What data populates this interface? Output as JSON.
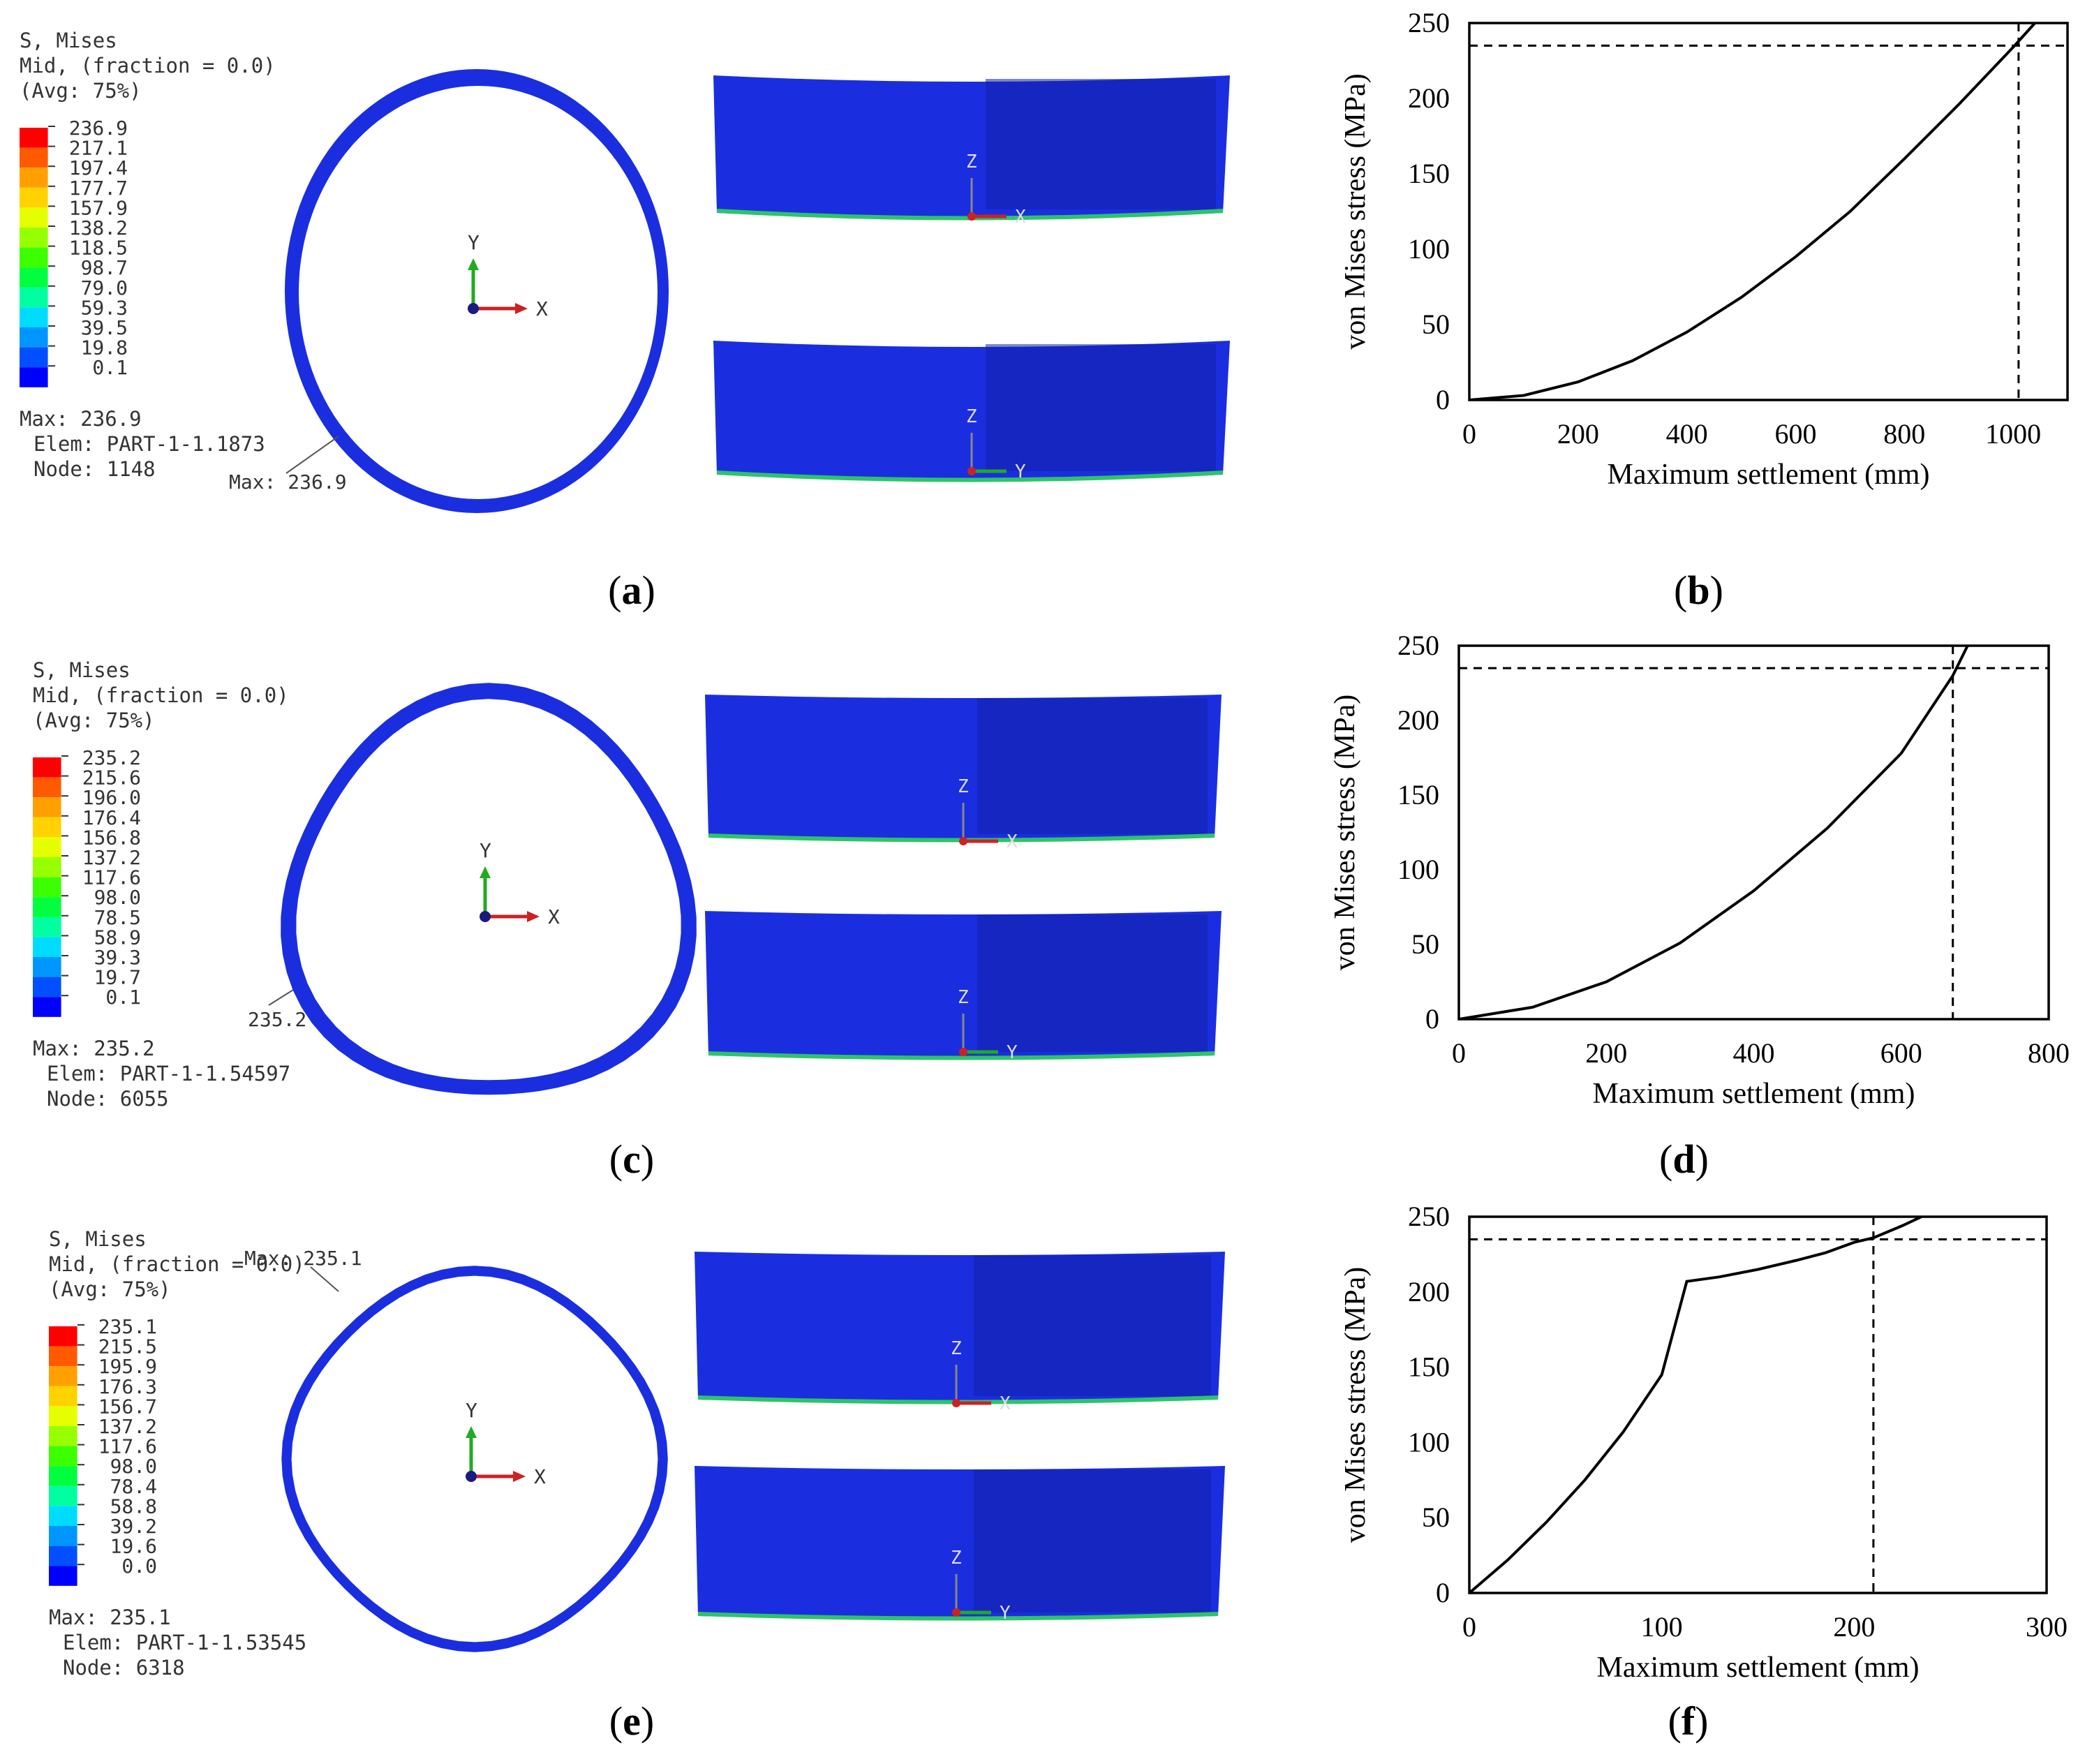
{
  "figure": {
    "panels": [
      {
        "fea": {
          "label": "a",
          "legend_title": [
            "S, Mises",
            "Mid, (fraction = 0.0)",
            "(Avg: 75%)"
          ],
          "legend_values": [
            "236.9",
            "217.1",
            "197.4",
            "177.7",
            "157.9",
            "138.2",
            "118.5",
            "98.7",
            "79.0",
            "59.3",
            "39.5",
            "19.8",
            "0.1"
          ],
          "max_info": [
            "Max: 236.9",
            "Elem: PART-1-1.1873",
            "Node: 1148"
          ],
          "max_callout": "Max: 236.9",
          "axis_labels": [
            "Y",
            "X"
          ],
          "side_top_axes": [
            "Z",
            "X"
          ],
          "side_bottom_axes": [
            "Z",
            "Y"
          ]
        },
        "chart_label": "b"
      },
      {
        "fea": {
          "label": "c",
          "legend_title": [
            "S, Mises",
            "Mid, (fraction = 0.0)",
            "(Avg: 75%)"
          ],
          "legend_values": [
            "235.2",
            "215.6",
            "196.0",
            "176.4",
            "156.8",
            "137.2",
            "117.6",
            "98.0",
            "78.5",
            "58.9",
            "39.3",
            "19.7",
            "0.1"
          ],
          "max_info": [
            "Max: 235.2",
            "Elem: PART-1-1.54597",
            "Node: 6055"
          ],
          "max_callout": "235.2",
          "axis_labels": [
            "Y",
            "X"
          ],
          "side_top_axes": [
            "Z",
            "X"
          ],
          "side_bottom_axes": [
            "Z",
            "Y"
          ]
        },
        "chart_label": "d"
      },
      {
        "fea": {
          "label": "e",
          "legend_title": [
            "S, Mises",
            "Mid, (fraction = 0.0)",
            "(Avg: 75%)"
          ],
          "legend_values": [
            "235.1",
            "215.5",
            "195.9",
            "176.3",
            "156.7",
            "137.2",
            "117.6",
            "98.0",
            "78.4",
            "58.8",
            "39.2",
            "19.6",
            "0.0"
          ],
          "max_info": [
            "Max: 235.1",
            "Elem: PART-1-1.53545",
            "Node: 6318"
          ],
          "max_callout": "Max: 235.1",
          "axis_labels": [
            "Y",
            "X"
          ],
          "side_top_axes": [
            "Z",
            "X"
          ],
          "side_bottom_axes": [
            "Z",
            "Y"
          ]
        },
        "chart_label": "f"
      }
    ],
    "contour_colors": [
      "#ff0000",
      "#ff5a00",
      "#ffa000",
      "#ffd200",
      "#e6ff00",
      "#96ff00",
      "#3cff00",
      "#00ff3c",
      "#00ffa0",
      "#00dcff",
      "#0096ff",
      "#0050ff",
      "#0000ff"
    ],
    "shell_color": "#1a2ee0"
  },
  "chart_data": [
    {
      "type": "line",
      "title": "",
      "xlabel": "Maximum settlement  (mm)",
      "ylabel": "von Mises stress (MPa)",
      "xlim": [
        0,
        1100
      ],
      "ylim": [
        0,
        250
      ],
      "xticks": [
        0,
        200,
        400,
        600,
        800,
        1000
      ],
      "yticks": [
        0,
        50,
        100,
        150,
        200,
        250
      ],
      "series": [
        {
          "name": "stress",
          "x": [
            0,
            100,
            200,
            300,
            400,
            500,
            600,
            700,
            800,
            900,
            1000,
            1040
          ],
          "y": [
            0,
            3,
            12,
            26,
            45,
            68,
            95,
            125,
            160,
            196,
            234,
            250
          ]
        }
      ],
      "ref_y": 235,
      "ref_x": 1010
    },
    {
      "type": "line",
      "title": "",
      "xlabel": "Maximum settlement  (mm)",
      "ylabel": "von Mises stress (MPa)",
      "xlim": [
        0,
        800
      ],
      "ylim": [
        0,
        250
      ],
      "xticks": [
        0,
        200,
        400,
        600,
        800
      ],
      "yticks": [
        0,
        50,
        100,
        150,
        200,
        250
      ],
      "series": [
        {
          "name": "stress",
          "x": [
            0,
            100,
            200,
            300,
            400,
            500,
            600,
            670,
            690
          ],
          "y": [
            0,
            8,
            25,
            51,
            86,
            128,
            178,
            230,
            250
          ]
        }
      ],
      "ref_y": 235,
      "ref_x": 670
    },
    {
      "type": "line",
      "title": "",
      "xlabel": "Maximum settlement  (mm)",
      "ylabel": "von Mises stress (MPa)",
      "xlim": [
        0,
        300
      ],
      "ylim": [
        0,
        250
      ],
      "xticks": [
        0,
        100,
        200,
        300
      ],
      "yticks": [
        0,
        50,
        100,
        150,
        200,
        250
      ],
      "series": [
        {
          "name": "stress",
          "x": [
            0,
            20,
            40,
            60,
            80,
            100,
            113,
            130,
            150,
            170,
            185,
            200,
            210,
            225,
            235
          ],
          "y": [
            0,
            22,
            47,
            75,
            107,
            145,
            207,
            210,
            215,
            221,
            226,
            233,
            236,
            244,
            250
          ]
        }
      ],
      "ref_y": 235,
      "ref_x": 210
    }
  ]
}
